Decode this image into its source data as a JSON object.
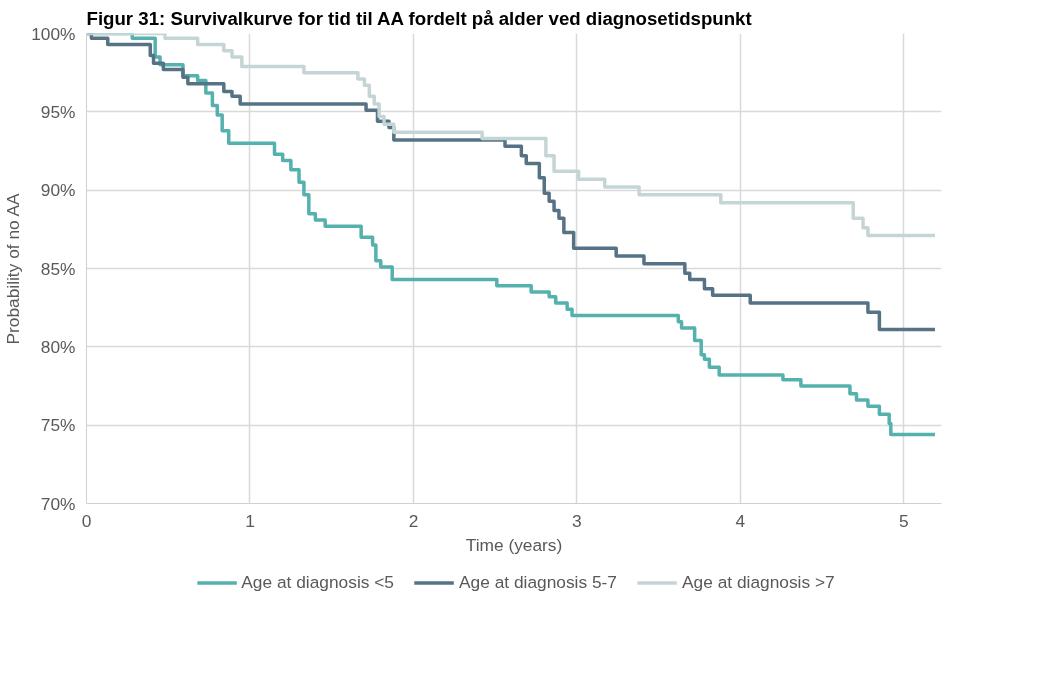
{
  "chart_data": {
    "type": "step",
    "title": "Figur 31: Survivalkurve for tid til AA fordelt på alder ved diagnosetidspunkt",
    "xlabel": "Time (years)",
    "ylabel": "Probability of no AA",
    "xlim": [
      0,
      5.23
    ],
    "xticks": [
      0,
      1,
      2,
      3,
      4,
      5
    ],
    "ylim": [
      70,
      100
    ],
    "yticks": [
      {
        "value": 70,
        "label": "70%"
      },
      {
        "value": 75,
        "label": "75%"
      },
      {
        "value": 80,
        "label": "80%"
      },
      {
        "value": 85,
        "label": "85%"
      },
      {
        "value": 90,
        "label": "90%"
      },
      {
        "value": 95,
        "label": "95%"
      },
      {
        "value": 100,
        "label": "100%"
      }
    ],
    "grid": true,
    "legend": "bottom",
    "marker": "none",
    "line_style": "solid",
    "series": [
      {
        "name": "Age at diagnosis <5",
        "color": "#55b1ad",
        "x": [
          0,
          0.28,
          0.42,
          0.45,
          0.59,
          0.68,
          0.73,
          0.77,
          0.8,
          0.83,
          0.87,
          1.15,
          1.2,
          1.25,
          1.3,
          1.33,
          1.36,
          1.4,
          1.46,
          1.68,
          1.75,
          1.77,
          1.8,
          1.87,
          2.51,
          2.72,
          2.83,
          2.87,
          2.94,
          2.97,
          3.62,
          3.64,
          3.72,
          3.76,
          3.78,
          3.81,
          3.87,
          4.26,
          4.37,
          4.67,
          4.71,
          4.78,
          4.85,
          4.91,
          4.92,
          5.19
        ],
        "values": [
          100,
          99.7,
          98.5,
          98.0,
          97.3,
          97.0,
          96.2,
          95.4,
          94.8,
          93.8,
          93.0,
          92.3,
          91.9,
          91.3,
          90.5,
          89.7,
          88.5,
          88.1,
          87.7,
          87.0,
          86.5,
          85.5,
          85.1,
          84.3,
          83.9,
          83.5,
          83.2,
          82.8,
          82.4,
          82.0,
          81.6,
          81.2,
          80.4,
          79.5,
          79.2,
          78.7,
          78.2,
          77.9,
          77.5,
          77.0,
          76.6,
          76.2,
          75.7,
          75.1,
          74.4,
          74.4
        ]
      },
      {
        "name": "Age at diagnosis 5-7",
        "color": "#557385",
        "x": [
          0,
          0.03,
          0.13,
          0.39,
          0.41,
          0.47,
          0.59,
          0.62,
          0.84,
          0.89,
          0.94,
          1.71,
          1.78,
          1.85,
          1.88,
          2.56,
          2.66,
          2.69,
          2.77,
          2.8,
          2.83,
          2.86,
          2.89,
          2.92,
          2.98,
          3.24,
          3.41,
          3.66,
          3.69,
          3.78,
          3.83,
          4.06,
          4.78,
          4.85,
          5.19
        ],
        "values": [
          100,
          99.7,
          99.3,
          98.6,
          98.1,
          97.7,
          97.2,
          96.8,
          96.3,
          96.0,
          95.5,
          95.1,
          94.4,
          94.0,
          93.2,
          92.8,
          92.2,
          91.7,
          90.8,
          89.8,
          89.3,
          88.7,
          88.2,
          87.3,
          86.3,
          85.8,
          85.3,
          84.7,
          84.3,
          83.7,
          83.3,
          82.8,
          82.2,
          81.1,
          81.1
        ]
      },
      {
        "name": "Age at diagnosis >7",
        "color": "#c5d5d6",
        "x": [
          0,
          0.48,
          0.68,
          0.84,
          0.89,
          0.95,
          1.33,
          1.66,
          1.7,
          1.73,
          1.76,
          1.79,
          1.82,
          1.88,
          2.42,
          2.81,
          2.86,
          3.01,
          3.17,
          3.38,
          3.88,
          4.69,
          4.75,
          4.78,
          5.19
        ],
        "values": [
          100,
          99.7,
          99.3,
          98.9,
          98.5,
          97.9,
          97.5,
          97.1,
          96.7,
          96.0,
          95.5,
          94.7,
          94.2,
          93.7,
          93.3,
          92.2,
          91.2,
          90.7,
          90.2,
          89.7,
          89.2,
          88.2,
          87.6,
          87.1,
          87.1
        ]
      }
    ]
  }
}
